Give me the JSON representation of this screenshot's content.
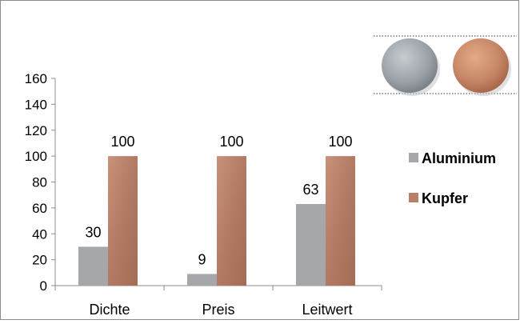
{
  "chart_data": {
    "type": "bar",
    "categories": [
      "Dichte",
      "Preis",
      "Leitwert"
    ],
    "series": [
      {
        "name": "Aluminium",
        "values": [
          30,
          9,
          63
        ],
        "color": "#a6a7ab"
      },
      {
        "name": "Kupfer",
        "values": [
          100,
          100,
          100
        ],
        "color": "#b8806a"
      }
    ],
    "ylim": [
      0,
      160
    ],
    "yticks": [
      "0",
      "20",
      "40",
      "60",
      "80",
      "100",
      "120",
      "140",
      "160"
    ],
    "data_labels": [
      [
        "30",
        "9",
        "63"
      ],
      [
        "100",
        "100",
        "100"
      ]
    ],
    "legend_position": "right",
    "grid": false,
    "decoration": {
      "left_disc_color": "#9ea3a8",
      "right_disc_color": "#c98c6b",
      "description_icons": [
        "aluminium-disc-icon",
        "copper-disc-icon"
      ]
    }
  }
}
